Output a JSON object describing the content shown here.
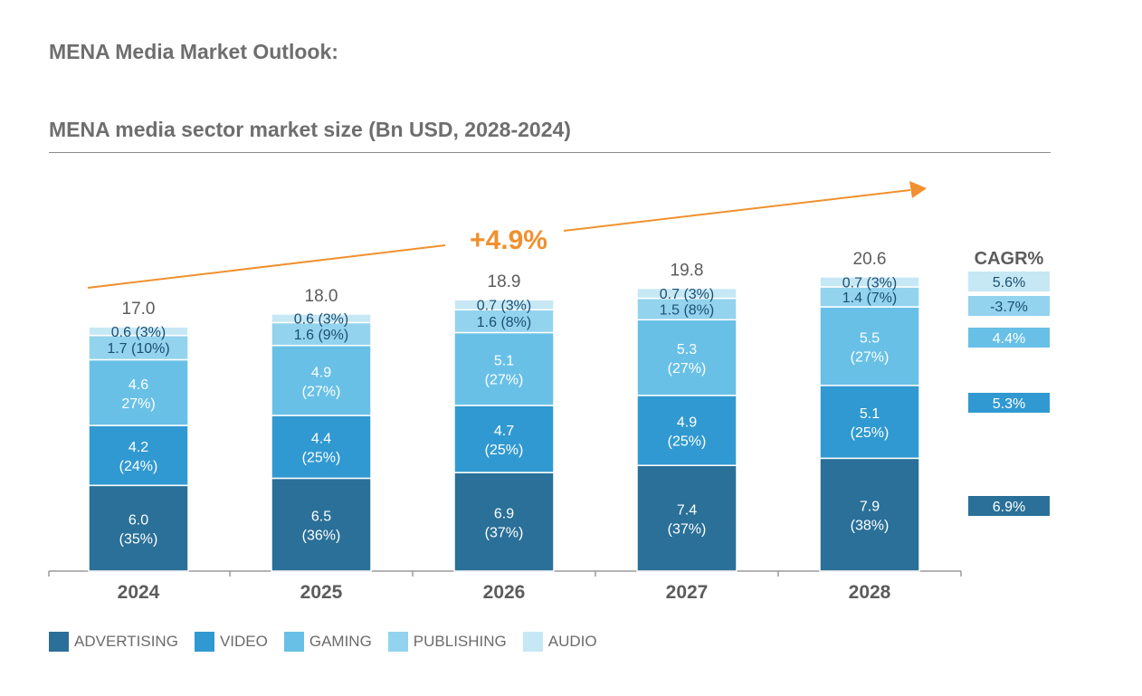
{
  "title": "MENA Media Market Outlook:",
  "subtitle": "MENA media sector market size (Bn USD, 2028-2024)",
  "chart_data": {
    "type": "bar",
    "stacked": true,
    "categories": [
      "2024",
      "2025",
      "2026",
      "2027",
      "2028"
    ],
    "series": [
      {
        "name": "ADVERTISING",
        "color": "#2a7098",
        "text_color": "#ffffff",
        "values": [
          6.0,
          6.5,
          6.9,
          7.4,
          7.9
        ],
        "labels": [
          "6.0\n(35%)",
          "6.5\n(36%)",
          "6.9\n(37%)",
          "7.4\n(37%)",
          "7.9\n(38%)"
        ]
      },
      {
        "name": "VIDEO",
        "color": "#3199d1",
        "text_color": "#ffffff",
        "values": [
          4.2,
          4.4,
          4.7,
          4.9,
          5.1
        ],
        "labels": [
          "4.2\n(24%)",
          "4.4\n(25%)",
          "4.7\n(25%)",
          "4.9\n(25%)",
          "5.1\n(25%)"
        ]
      },
      {
        "name": "GAMING",
        "color": "#68c0e6",
        "text_color": "#ffffff",
        "values": [
          4.6,
          4.9,
          5.1,
          5.3,
          5.5
        ],
        "labels": [
          "4.6\n27%)",
          "4.9\n(27%)",
          "5.1\n(27%)",
          "5.3\n(27%)",
          "5.5\n(27%)"
        ]
      },
      {
        "name": "PUBLISHING",
        "color": "#93d3ee",
        "text_color": "#1b4f73",
        "values": [
          1.7,
          1.6,
          1.6,
          1.5,
          1.4
        ],
        "labels": [
          "1.7 (10%)",
          "1.6 (9%)",
          "1.6 (8%)",
          "1.5 (8%)",
          "1.4 (7%)"
        ]
      },
      {
        "name": "AUDIO",
        "color": "#c6e8f5",
        "text_color": "#1b4f73",
        "values": [
          0.6,
          0.6,
          0.7,
          0.7,
          0.7
        ],
        "labels": [
          "0.6 (3%)",
          "0.6 (3%)",
          "0.7 (3%)",
          "0.7 (3%)",
          "0.7 (3%)"
        ]
      }
    ],
    "totals": [
      "17.0",
      "18.0",
      "18.9",
      "19.8",
      "20.6"
    ],
    "growth_label": "+4.9%",
    "growth_color": "#f0902e",
    "cagr_title": "CAGR%",
    "cagr": [
      {
        "series": "AUDIO",
        "label": "5.6%"
      },
      {
        "series": "PUBLISHING",
        "label": "-3.7%"
      },
      {
        "series": "GAMING",
        "label": "4.4%"
      },
      {
        "series": "VIDEO",
        "label": "5.3%"
      },
      {
        "series": "ADVERTISING",
        "label": "6.9%"
      }
    ],
    "legend_position": "bottom-left",
    "grid": false
  }
}
